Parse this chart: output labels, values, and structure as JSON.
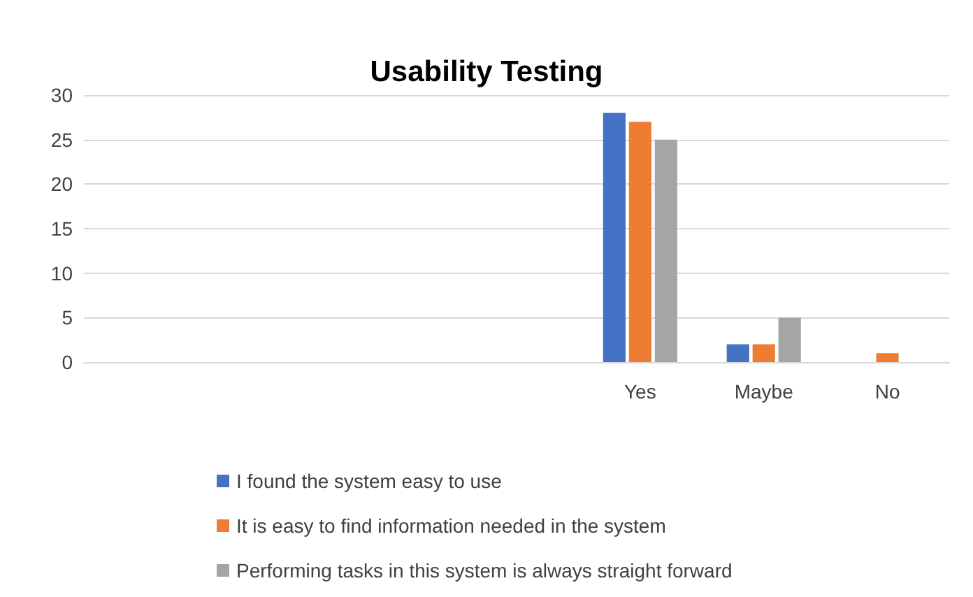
{
  "chart_data": {
    "type": "bar",
    "title": "Usability Testing",
    "categories": [
      null,
      null,
      null,
      null,
      "Yes",
      "Maybe",
      "No"
    ],
    "series": [
      {
        "name": "I found the system easy to use",
        "color": "#4472c4",
        "values": [
          null,
          null,
          null,
          null,
          28,
          2,
          0
        ]
      },
      {
        "name": "It is easy to find information needed in the system",
        "color": "#ed7d31",
        "values": [
          null,
          null,
          null,
          null,
          27,
          2,
          1
        ]
      },
      {
        "name": "Performing tasks in this system is always straight forward",
        "color": "#a5a5a5",
        "values": [
          null,
          null,
          null,
          null,
          25,
          5,
          0
        ]
      }
    ],
    "ylim": [
      0,
      30
    ],
    "yticks": [
      0,
      5,
      10,
      15,
      20,
      25,
      30
    ],
    "grid": "y",
    "legend": "bottom"
  }
}
